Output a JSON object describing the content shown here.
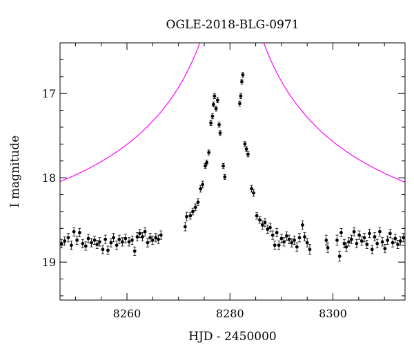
{
  "chart_data": {
    "type": "scatter",
    "title": "OGLE-2018-BLG-0971",
    "xlabel": "HJD - 2450000",
    "ylabel": "I magnitude",
    "xlim": [
      8247,
      8314
    ],
    "ylim": [
      19.45,
      16.4
    ],
    "y_inverted": true,
    "grid": false,
    "x_ticks": [
      8260,
      8280,
      8300
    ],
    "x_tick_labels": [
      "8260",
      "8280",
      "8300"
    ],
    "y_ticks": [
      17,
      18,
      19
    ],
    "y_tick_labels": [
      "17",
      "18",
      "19"
    ],
    "colors": {
      "points": "#000000",
      "model": "#ff00ff"
    },
    "series": [
      {
        "type": "scatter",
        "marker": "filled-circle-with-errorbars",
        "points": [
          {
            "x": 8247.3,
            "y": 18.78,
            "err": 0.05
          },
          {
            "x": 8247.9,
            "y": 18.75,
            "err": 0.05
          },
          {
            "x": 8248.6,
            "y": 18.71,
            "err": 0.05
          },
          {
            "x": 8249.2,
            "y": 18.8,
            "err": 0.05
          },
          {
            "x": 8249.7,
            "y": 18.64,
            "err": 0.05
          },
          {
            "x": 8250.3,
            "y": 18.74,
            "err": 0.05
          },
          {
            "x": 8250.8,
            "y": 18.65,
            "err": 0.05
          },
          {
            "x": 8251.4,
            "y": 18.78,
            "err": 0.05
          },
          {
            "x": 8252.0,
            "y": 18.81,
            "err": 0.05
          },
          {
            "x": 8252.5,
            "y": 18.72,
            "err": 0.05
          },
          {
            "x": 8253.1,
            "y": 18.77,
            "err": 0.05
          },
          {
            "x": 8253.7,
            "y": 18.74,
            "err": 0.05
          },
          {
            "x": 8254.2,
            "y": 18.79,
            "err": 0.05
          },
          {
            "x": 8254.7,
            "y": 18.76,
            "err": 0.05
          },
          {
            "x": 8255.3,
            "y": 18.85,
            "err": 0.05
          },
          {
            "x": 8255.8,
            "y": 18.73,
            "err": 0.05
          },
          {
            "x": 8256.3,
            "y": 18.86,
            "err": 0.05
          },
          {
            "x": 8256.9,
            "y": 18.77,
            "err": 0.05
          },
          {
            "x": 8257.4,
            "y": 18.71,
            "err": 0.05
          },
          {
            "x": 8258.0,
            "y": 18.8,
            "err": 0.05
          },
          {
            "x": 8258.5,
            "y": 18.73,
            "err": 0.05
          },
          {
            "x": 8259.1,
            "y": 18.76,
            "err": 0.05
          },
          {
            "x": 8259.7,
            "y": 18.72,
            "err": 0.05
          },
          {
            "x": 8260.4,
            "y": 18.76,
            "err": 0.05
          },
          {
            "x": 8261.0,
            "y": 18.74,
            "err": 0.05
          },
          {
            "x": 8261.5,
            "y": 18.87,
            "err": 0.05
          },
          {
            "x": 8262.0,
            "y": 18.7,
            "err": 0.05
          },
          {
            "x": 8262.5,
            "y": 18.66,
            "err": 0.05
          },
          {
            "x": 8263.0,
            "y": 18.7,
            "err": 0.05
          },
          {
            "x": 8263.5,
            "y": 18.64,
            "err": 0.05
          },
          {
            "x": 8264.0,
            "y": 18.77,
            "err": 0.05
          },
          {
            "x": 8264.5,
            "y": 18.71,
            "err": 0.05
          },
          {
            "x": 8265.0,
            "y": 18.74,
            "err": 0.05
          },
          {
            "x": 8265.6,
            "y": 18.71,
            "err": 0.05
          },
          {
            "x": 8266.1,
            "y": 18.73,
            "err": 0.05
          },
          {
            "x": 8266.6,
            "y": 18.68,
            "err": 0.05
          },
          {
            "x": 8271.3,
            "y": 18.58,
            "err": 0.05
          },
          {
            "x": 8271.6,
            "y": 18.46,
            "err": 0.05
          },
          {
            "x": 8272.3,
            "y": 18.45,
            "err": 0.04
          },
          {
            "x": 8272.8,
            "y": 18.4,
            "err": 0.04
          },
          {
            "x": 8273.3,
            "y": 18.35,
            "err": 0.04
          },
          {
            "x": 8273.8,
            "y": 18.29,
            "err": 0.04
          },
          {
            "x": 8274.3,
            "y": 18.13,
            "err": 0.04
          },
          {
            "x": 8274.7,
            "y": 18.08,
            "err": 0.04
          },
          {
            "x": 8275.2,
            "y": 17.86,
            "err": 0.03
          },
          {
            "x": 8275.5,
            "y": 17.82,
            "err": 0.03
          },
          {
            "x": 8275.9,
            "y": 17.7,
            "err": 0.03
          },
          {
            "x": 8276.3,
            "y": 17.35,
            "err": 0.03
          },
          {
            "x": 8276.6,
            "y": 17.27,
            "err": 0.03
          },
          {
            "x": 8276.8,
            "y": 17.13,
            "err": 0.03
          },
          {
            "x": 8277.0,
            "y": 17.03,
            "err": 0.03
          },
          {
            "x": 8277.3,
            "y": 17.18,
            "err": 0.03
          },
          {
            "x": 8277.6,
            "y": 17.08,
            "err": 0.03
          },
          {
            "x": 8277.9,
            "y": 17.37,
            "err": 0.03
          },
          {
            "x": 8278.1,
            "y": 17.47,
            "err": 0.03
          },
          {
            "x": 8278.7,
            "y": 17.86,
            "err": 0.03
          },
          {
            "x": 8279.0,
            "y": 17.99,
            "err": 0.03
          },
          {
            "x": 8281.9,
            "y": 17.12,
            "err": 0.03
          },
          {
            "x": 8282.1,
            "y": 17.03,
            "err": 0.03
          },
          {
            "x": 8282.3,
            "y": 16.86,
            "err": 0.03
          },
          {
            "x": 8282.5,
            "y": 16.78,
            "err": 0.03
          },
          {
            "x": 8282.9,
            "y": 17.6,
            "err": 0.03
          },
          {
            "x": 8283.2,
            "y": 17.66,
            "err": 0.03
          },
          {
            "x": 8283.5,
            "y": 17.72,
            "err": 0.03
          },
          {
            "x": 8284.2,
            "y": 18.13,
            "err": 0.04
          },
          {
            "x": 8284.6,
            "y": 18.18,
            "err": 0.04
          },
          {
            "x": 8285.2,
            "y": 18.45,
            "err": 0.04
          },
          {
            "x": 8285.8,
            "y": 18.5,
            "err": 0.04
          },
          {
            "x": 8286.3,
            "y": 18.56,
            "err": 0.05
          },
          {
            "x": 8286.8,
            "y": 18.53,
            "err": 0.05
          },
          {
            "x": 8287.3,
            "y": 18.61,
            "err": 0.05
          },
          {
            "x": 8287.8,
            "y": 18.59,
            "err": 0.05
          },
          {
            "x": 8288.3,
            "y": 18.68,
            "err": 0.05
          },
          {
            "x": 8288.7,
            "y": 18.8,
            "err": 0.05
          },
          {
            "x": 8289.1,
            "y": 18.65,
            "err": 0.05
          },
          {
            "x": 8289.5,
            "y": 18.8,
            "err": 0.05
          },
          {
            "x": 8290.0,
            "y": 18.72,
            "err": 0.05
          },
          {
            "x": 8290.5,
            "y": 18.76,
            "err": 0.05
          },
          {
            "x": 8291.0,
            "y": 18.69,
            "err": 0.05
          },
          {
            "x": 8291.5,
            "y": 18.73,
            "err": 0.05
          },
          {
            "x": 8292.0,
            "y": 18.77,
            "err": 0.05
          },
          {
            "x": 8292.5,
            "y": 18.74,
            "err": 0.05
          },
          {
            "x": 8293.0,
            "y": 18.82,
            "err": 0.05
          },
          {
            "x": 8293.5,
            "y": 18.71,
            "err": 0.05
          },
          {
            "x": 8294.1,
            "y": 18.56,
            "err": 0.05
          },
          {
            "x": 8294.5,
            "y": 18.7,
            "err": 0.05
          },
          {
            "x": 8295.0,
            "y": 18.77,
            "err": 0.05
          },
          {
            "x": 8295.5,
            "y": 18.85,
            "err": 0.06
          },
          {
            "x": 8298.7,
            "y": 18.74,
            "err": 0.06
          },
          {
            "x": 8299.0,
            "y": 18.83,
            "err": 0.06
          },
          {
            "x": 8300.8,
            "y": 18.74,
            "err": 0.06
          },
          {
            "x": 8301.3,
            "y": 18.93,
            "err": 0.06
          },
          {
            "x": 8301.6,
            "y": 18.65,
            "err": 0.05
          },
          {
            "x": 8302.2,
            "y": 18.78,
            "err": 0.05
          },
          {
            "x": 8302.6,
            "y": 18.82,
            "err": 0.05
          },
          {
            "x": 8303.1,
            "y": 18.76,
            "err": 0.05
          },
          {
            "x": 8303.6,
            "y": 18.73,
            "err": 0.05
          },
          {
            "x": 8304.1,
            "y": 18.64,
            "err": 0.05
          },
          {
            "x": 8304.6,
            "y": 18.78,
            "err": 0.05
          },
          {
            "x": 8305.1,
            "y": 18.68,
            "err": 0.05
          },
          {
            "x": 8305.6,
            "y": 18.75,
            "err": 0.05
          },
          {
            "x": 8306.1,
            "y": 18.71,
            "err": 0.05
          },
          {
            "x": 8306.6,
            "y": 18.79,
            "err": 0.05
          },
          {
            "x": 8307.1,
            "y": 18.66,
            "err": 0.05
          },
          {
            "x": 8307.6,
            "y": 18.85,
            "err": 0.05
          },
          {
            "x": 8308.1,
            "y": 18.7,
            "err": 0.05
          },
          {
            "x": 8308.6,
            "y": 18.78,
            "err": 0.05
          },
          {
            "x": 8309.1,
            "y": 18.64,
            "err": 0.05
          },
          {
            "x": 8309.6,
            "y": 18.76,
            "err": 0.05
          },
          {
            "x": 8310.1,
            "y": 18.84,
            "err": 0.05
          },
          {
            "x": 8310.6,
            "y": 18.74,
            "err": 0.05
          },
          {
            "x": 8311.1,
            "y": 18.66,
            "err": 0.05
          },
          {
            "x": 8311.6,
            "y": 18.77,
            "err": 0.05
          },
          {
            "x": 8312.1,
            "y": 18.72,
            "err": 0.05
          },
          {
            "x": 8312.6,
            "y": 18.79,
            "err": 0.05
          },
          {
            "x": 8313.1,
            "y": 18.75,
            "err": 0.05
          },
          {
            "x": 8313.7,
            "y": 18.71,
            "err": 0.05
          }
        ]
      },
      {
        "type": "line",
        "model": {
          "t0": 8280.35,
          "tE": 60,
          "u0": 0.016,
          "baseline_mag": 18.73,
          "blend_fraction": 0.12
        }
      }
    ]
  }
}
